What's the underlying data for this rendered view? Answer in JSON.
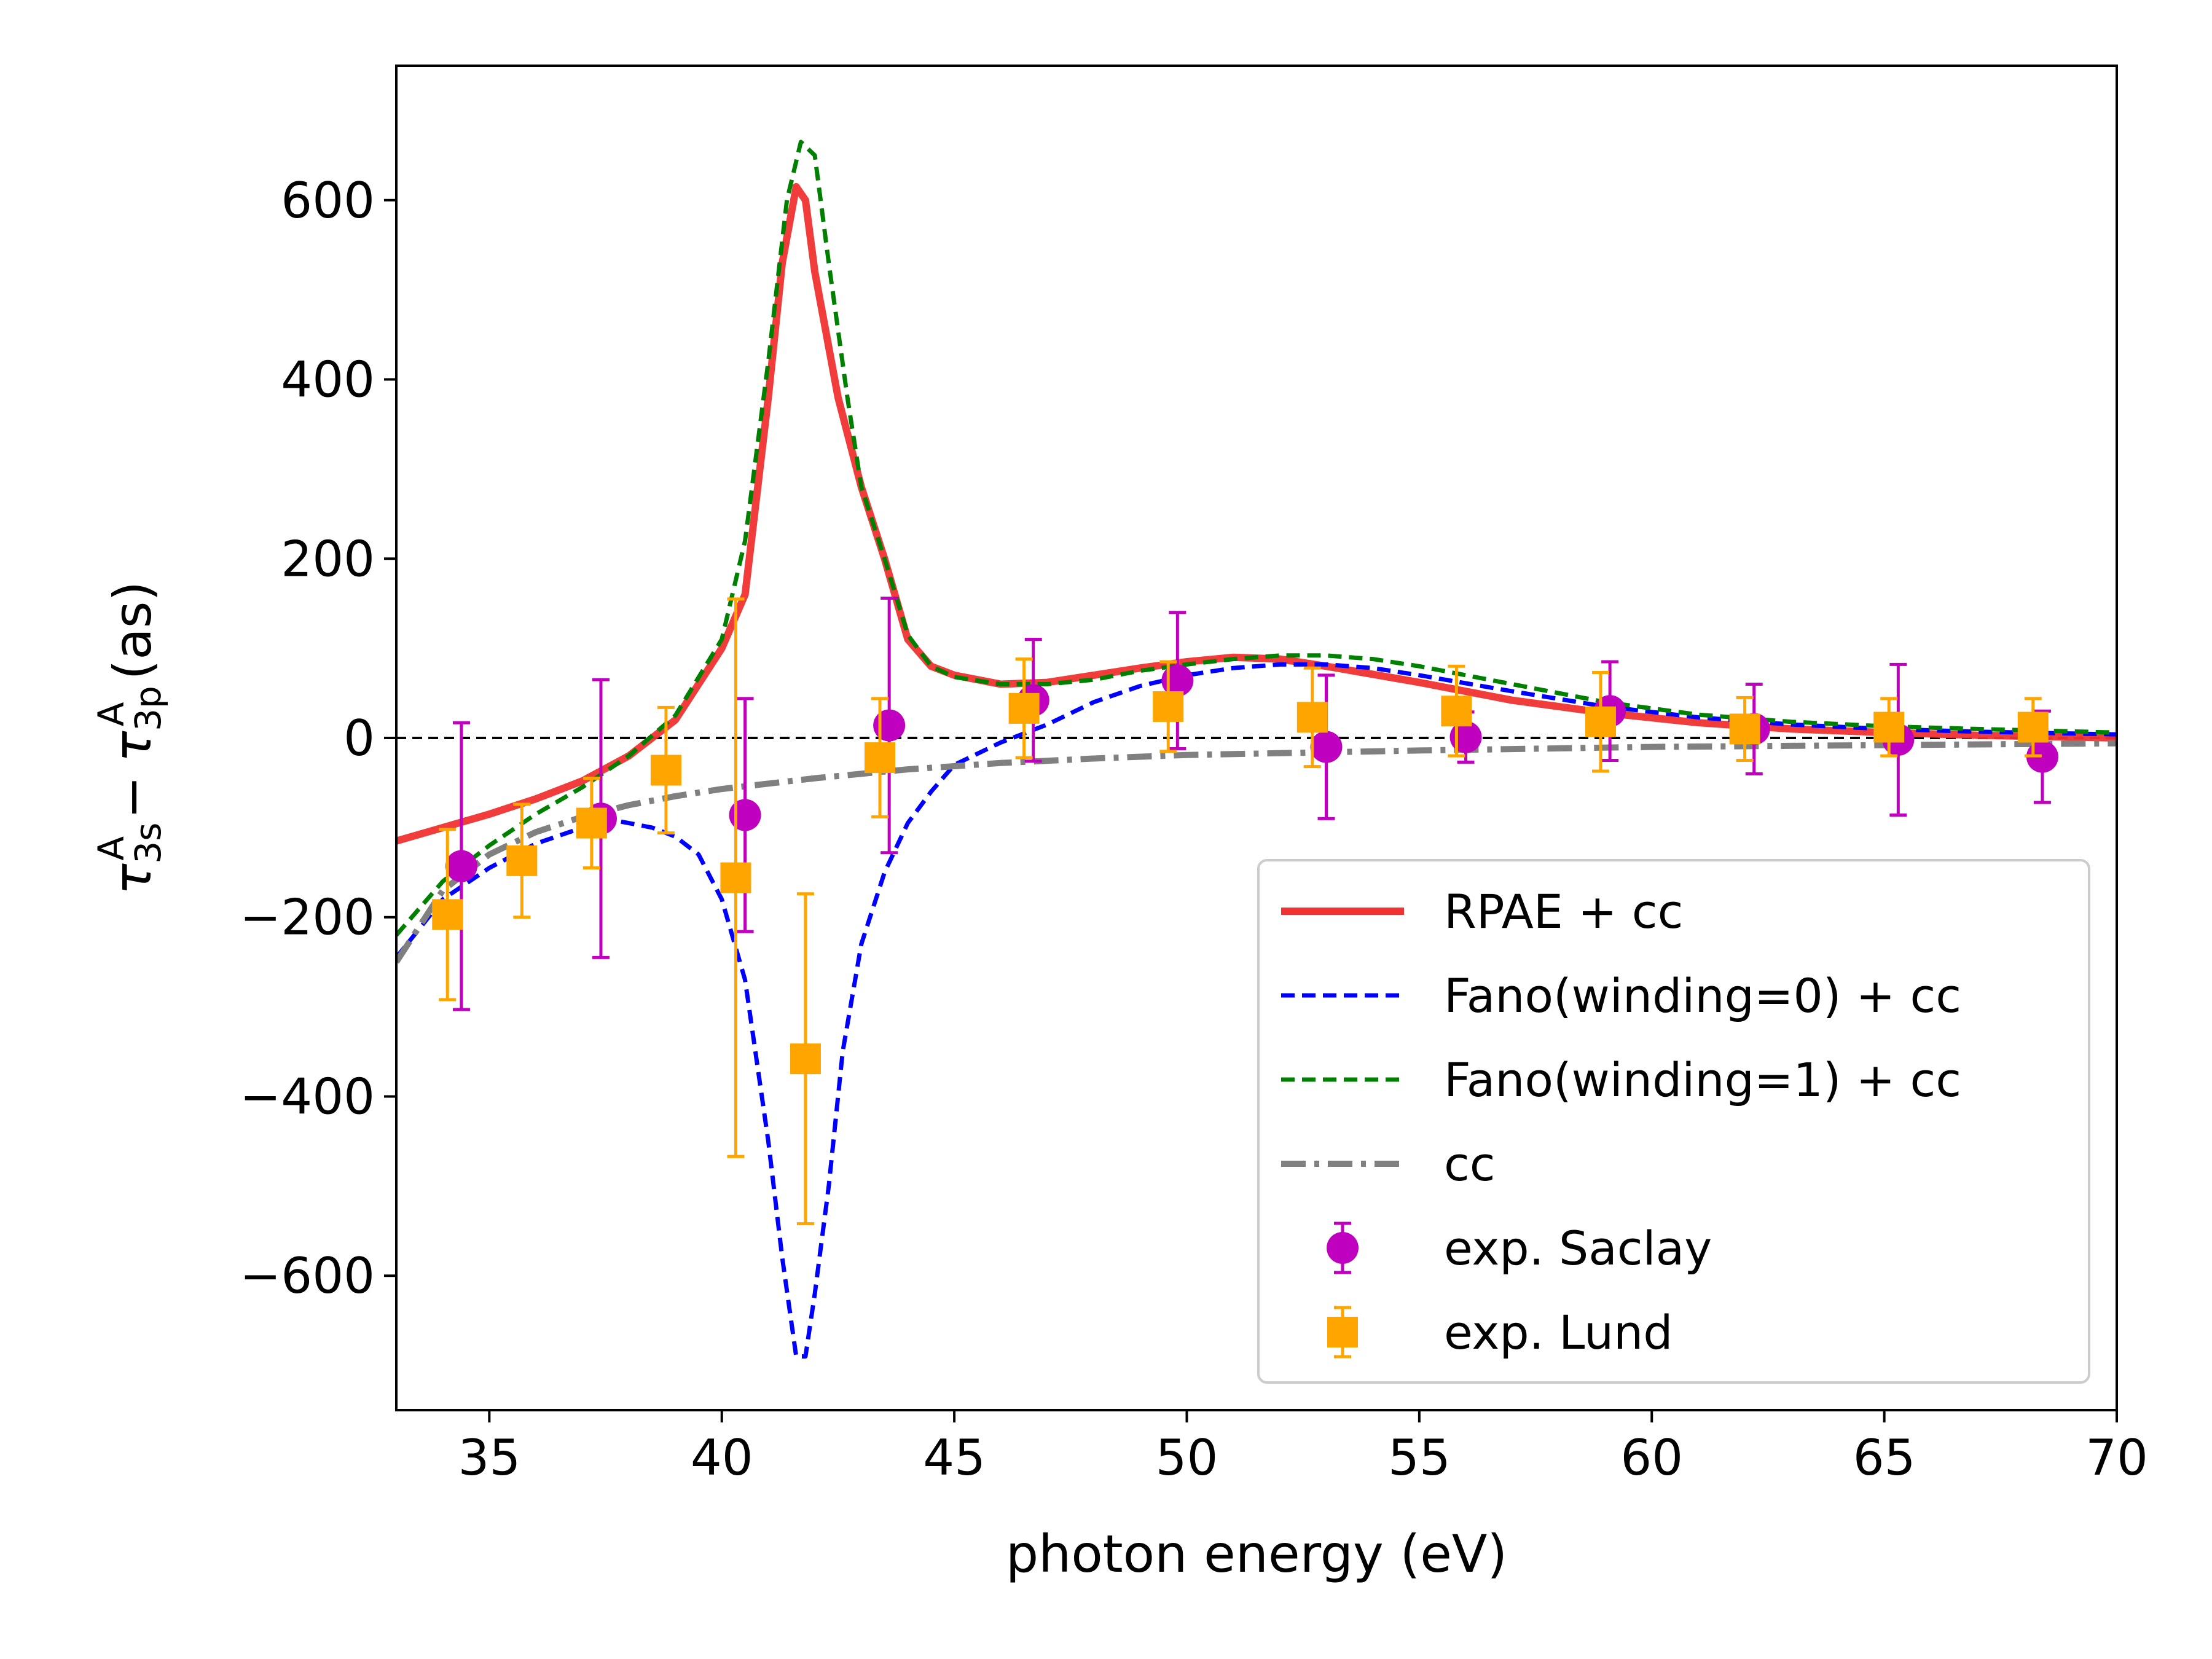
{
  "chart_data": {
    "type": "line",
    "title": "",
    "xlabel": "photon energy (eV)",
    "ylabel": {
      "tau": "τ",
      "sub1": "3s",
      "sup1": "A",
      "minus": "−",
      "sub2": "3p",
      "sup2": "A",
      "unit": "(as)"
    },
    "xlim": [
      33,
      70
    ],
    "ylim": [
      -750,
      750
    ],
    "xticks": [
      35,
      40,
      45,
      50,
      55,
      60,
      65,
      70
    ],
    "yticks": [
      -600,
      -400,
      -200,
      0,
      200,
      400,
      600
    ],
    "xtick_labels": [
      "35",
      "40",
      "45",
      "50",
      "55",
      "60",
      "65",
      "70"
    ],
    "ytick_labels": [
      "−600",
      "−400",
      "−200",
      "0",
      "200",
      "400",
      "600"
    ],
    "reference_line_y": 0,
    "legend_position": "lower-right",
    "colors": {
      "rpae": "#f03232",
      "fano0": "#0000ff",
      "fano1": "#008000",
      "cc": "#808080",
      "saclay": "#bf00bf",
      "lund": "#ffa500",
      "reference": "#000000"
    },
    "series": [
      {
        "name": "RPAE + cc",
        "style": "solid",
        "color_key": "rpae",
        "points": [
          [
            33,
            -115
          ],
          [
            34,
            -100
          ],
          [
            35,
            -85
          ],
          [
            36,
            -68
          ],
          [
            37,
            -48
          ],
          [
            38,
            -20
          ],
          [
            39,
            20
          ],
          [
            40,
            100
          ],
          [
            40.5,
            160
          ],
          [
            41,
            380
          ],
          [
            41.3,
            530
          ],
          [
            41.6,
            615
          ],
          [
            41.8,
            600
          ],
          [
            42,
            520
          ],
          [
            42.5,
            380
          ],
          [
            43,
            280
          ],
          [
            43.5,
            200
          ],
          [
            44,
            110
          ],
          [
            44.5,
            80
          ],
          [
            45,
            70
          ],
          [
            46,
            60
          ],
          [
            47,
            62
          ],
          [
            48,
            70
          ],
          [
            49,
            78
          ],
          [
            50,
            85
          ],
          [
            51,
            90
          ],
          [
            52,
            88
          ],
          [
            53,
            80
          ],
          [
            55,
            62
          ],
          [
            57,
            42
          ],
          [
            59,
            28
          ],
          [
            61,
            17
          ],
          [
            63,
            10
          ],
          [
            65,
            6
          ],
          [
            67,
            3
          ],
          [
            70,
            0
          ]
        ]
      },
      {
        "name": "Fano(winding=0) + cc",
        "style": "dashed",
        "color_key": "fano0",
        "points": [
          [
            33,
            -245
          ],
          [
            34,
            -180
          ],
          [
            35,
            -145
          ],
          [
            36,
            -118
          ],
          [
            37,
            -100
          ],
          [
            37.8,
            -93
          ],
          [
            38.5,
            -100
          ],
          [
            39,
            -110
          ],
          [
            39.5,
            -130
          ],
          [
            40,
            -180
          ],
          [
            40.5,
            -270
          ],
          [
            41,
            -450
          ],
          [
            41.3,
            -580
          ],
          [
            41.6,
            -690
          ],
          [
            41.8,
            -690
          ],
          [
            42,
            -620
          ],
          [
            42.3,
            -500
          ],
          [
            42.6,
            -350
          ],
          [
            43,
            -230
          ],
          [
            43.5,
            -150
          ],
          [
            44,
            -95
          ],
          [
            44.5,
            -60
          ],
          [
            45,
            -30
          ],
          [
            46,
            -5
          ],
          [
            47,
            15
          ],
          [
            48,
            40
          ],
          [
            49,
            58
          ],
          [
            50,
            70
          ],
          [
            51,
            78
          ],
          [
            52,
            82
          ],
          [
            53,
            82
          ],
          [
            54,
            78
          ],
          [
            55,
            70
          ],
          [
            57,
            52
          ],
          [
            59,
            35
          ],
          [
            61,
            23
          ],
          [
            63,
            15
          ],
          [
            65,
            10
          ],
          [
            67,
            7
          ],
          [
            70,
            4
          ]
        ]
      },
      {
        "name": "Fano(winding=1) + cc",
        "style": "dashed",
        "color_key": "fano1",
        "points": [
          [
            33,
            -220
          ],
          [
            34,
            -160
          ],
          [
            35,
            -120
          ],
          [
            36,
            -85
          ],
          [
            37,
            -55
          ],
          [
            38,
            -20
          ],
          [
            39,
            25
          ],
          [
            40,
            110
          ],
          [
            40.5,
            220
          ],
          [
            41,
            420
          ],
          [
            41.4,
            600
          ],
          [
            41.7,
            665
          ],
          [
            42,
            650
          ],
          [
            42.3,
            530
          ],
          [
            42.7,
            380
          ],
          [
            43,
            280
          ],
          [
            43.5,
            200
          ],
          [
            44,
            115
          ],
          [
            44.5,
            80
          ],
          [
            45,
            68
          ],
          [
            46,
            60
          ],
          [
            47,
            60
          ],
          [
            48,
            65
          ],
          [
            49,
            75
          ],
          [
            50,
            82
          ],
          [
            51,
            88
          ],
          [
            52,
            92
          ],
          [
            53,
            92
          ],
          [
            54,
            88
          ],
          [
            55,
            80
          ],
          [
            57,
            60
          ],
          [
            59,
            40
          ],
          [
            61,
            26
          ],
          [
            63,
            18
          ],
          [
            65,
            13
          ],
          [
            67,
            10
          ],
          [
            70,
            6
          ]
        ]
      },
      {
        "name": "cc",
        "style": "dashdot",
        "color_key": "cc",
        "points": [
          [
            33,
            -250
          ],
          [
            34,
            -170
          ],
          [
            35,
            -130
          ],
          [
            36,
            -105
          ],
          [
            37,
            -88
          ],
          [
            38,
            -75
          ],
          [
            39,
            -65
          ],
          [
            40,
            -57
          ],
          [
            42,
            -45
          ],
          [
            44,
            -35
          ],
          [
            46,
            -28
          ],
          [
            48,
            -23
          ],
          [
            50,
            -19
          ],
          [
            55,
            -14
          ],
          [
            60,
            -10
          ],
          [
            65,
            -8
          ],
          [
            70,
            -6
          ]
        ]
      }
    ],
    "error_series": [
      {
        "name": "exp. Saclay",
        "marker": "circle",
        "color_key": "saclay",
        "points": [
          {
            "x": 34.4,
            "y": -143,
            "lo": -303,
            "hi": 17
          },
          {
            "x": 37.4,
            "y": -90,
            "lo": -245,
            "hi": 65
          },
          {
            "x": 40.5,
            "y": -86,
            "lo": -216,
            "hi": 44
          },
          {
            "x": 43.6,
            "y": 14,
            "lo": -128,
            "hi": 156
          },
          {
            "x": 46.7,
            "y": 42,
            "lo": -26,
            "hi": 110
          },
          {
            "x": 49.8,
            "y": 64,
            "lo": -12,
            "hi": 140
          },
          {
            "x": 53.0,
            "y": -10,
            "lo": -90,
            "hi": 70
          },
          {
            "x": 56.0,
            "y": 1,
            "lo": -27,
            "hi": 29
          },
          {
            "x": 59.1,
            "y": 30,
            "lo": -25,
            "hi": 85
          },
          {
            "x": 62.2,
            "y": 10,
            "lo": -40,
            "hi": 60
          },
          {
            "x": 65.3,
            "y": -2,
            "lo": -86,
            "hi": 82
          },
          {
            "x": 68.4,
            "y": -21,
            "lo": -72,
            "hi": 30
          }
        ]
      },
      {
        "name": "exp. Lund",
        "marker": "square",
        "color_key": "lund",
        "points": [
          {
            "x": 34.1,
            "y": -197,
            "lo": -292,
            "hi": -102
          },
          {
            "x": 35.7,
            "y": -137,
            "lo": -200,
            "hi": -74
          },
          {
            "x": 37.2,
            "y": -95,
            "lo": -145,
            "hi": -45
          },
          {
            "x": 38.8,
            "y": -36,
            "lo": -106,
            "hi": 34
          },
          {
            "x": 40.3,
            "y": -156,
            "lo": -467,
            "hi": 155
          },
          {
            "x": 41.8,
            "y": -358,
            "lo": -542,
            "hi": -174
          },
          {
            "x": 43.4,
            "y": -22,
            "lo": -88,
            "hi": 44
          },
          {
            "x": 46.5,
            "y": 33,
            "lo": -22,
            "hi": 88
          },
          {
            "x": 49.6,
            "y": 35,
            "lo": -15,
            "hi": 85
          },
          {
            "x": 52.7,
            "y": 23,
            "lo": -32,
            "hi": 78
          },
          {
            "x": 55.8,
            "y": 30,
            "lo": -20,
            "hi": 80
          },
          {
            "x": 58.9,
            "y": 18,
            "lo": -37,
            "hi": 73
          },
          {
            "x": 62.0,
            "y": 10,
            "lo": -25,
            "hi": 45
          },
          {
            "x": 65.1,
            "y": 12,
            "lo": -20,
            "hi": 44
          },
          {
            "x": 68.2,
            "y": 12,
            "lo": -20,
            "hi": 44
          }
        ]
      }
    ],
    "legend": [
      {
        "label": "RPAE + cc",
        "kind": "line",
        "style": "solid",
        "color_key": "rpae"
      },
      {
        "label": "Fano(winding=0) + cc",
        "kind": "line",
        "style": "dashed",
        "color_key": "fano0"
      },
      {
        "label": "Fano(winding=1) + cc",
        "kind": "line",
        "style": "dashed",
        "color_key": "fano1"
      },
      {
        "label": "cc",
        "kind": "line",
        "style": "dashdot",
        "color_key": "cc"
      },
      {
        "label": "exp. Saclay",
        "kind": "marker",
        "marker": "circle",
        "color_key": "saclay"
      },
      {
        "label": "exp. Lund",
        "kind": "marker",
        "marker": "square",
        "color_key": "lund"
      }
    ]
  }
}
